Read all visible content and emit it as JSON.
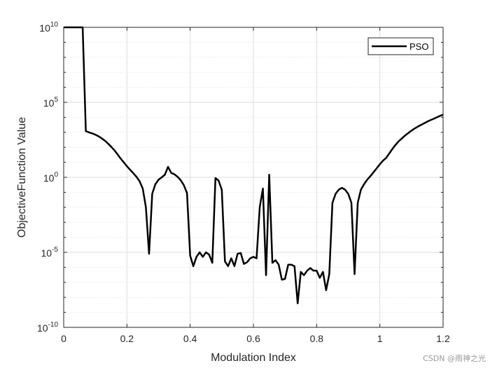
{
  "chart_data": {
    "type": "line",
    "xlabel": "Modulation Index",
    "ylabel": "ObjectiveFunction Value",
    "xlim": [
      0,
      1.2
    ],
    "ylim_exp": [
      -10,
      10
    ],
    "yscale": "log",
    "xticks": [
      "0",
      "0.2",
      "0.4",
      "0.6",
      "0.8",
      "1",
      "1.2"
    ],
    "yticks": [
      {
        "base": "10",
        "exp": "-10"
      },
      {
        "base": "10",
        "exp": "-5"
      },
      {
        "base": "10",
        "exp": "0"
      },
      {
        "base": "10",
        "exp": "5"
      },
      {
        "base": "10",
        "exp": "10"
      }
    ],
    "grid": true,
    "legend_position": "top-right",
    "series": [
      {
        "name": "PSO",
        "color": "#000000",
        "x": [
          0,
          0.01,
          0.02,
          0.03,
          0.04,
          0.05,
          0.06,
          0.07,
          0.08,
          0.09,
          0.1,
          0.11,
          0.12,
          0.13,
          0.14,
          0.15,
          0.16,
          0.17,
          0.18,
          0.19,
          0.2,
          0.21,
          0.22,
          0.23,
          0.24,
          0.25,
          0.26,
          0.27,
          0.28,
          0.29,
          0.3,
          0.31,
          0.32,
          0.33,
          0.34,
          0.35,
          0.36,
          0.37,
          0.38,
          0.39,
          0.4,
          0.41,
          0.42,
          0.43,
          0.44,
          0.45,
          0.46,
          0.47,
          0.48,
          0.49,
          0.5,
          0.51,
          0.52,
          0.53,
          0.54,
          0.55,
          0.56,
          0.57,
          0.58,
          0.59,
          0.6,
          0.61,
          0.62,
          0.63,
          0.64,
          0.65,
          0.66,
          0.67,
          0.68,
          0.69,
          0.7,
          0.71,
          0.72,
          0.73,
          0.74,
          0.75,
          0.76,
          0.77,
          0.78,
          0.79,
          0.8,
          0.81,
          0.82,
          0.83,
          0.84,
          0.85,
          0.86,
          0.87,
          0.88,
          0.89,
          0.9,
          0.91,
          0.92,
          0.93,
          0.94,
          0.95,
          0.96,
          0.97,
          0.98,
          0.99,
          1.0,
          1.01,
          1.02,
          1.03,
          1.04,
          1.05,
          1.06,
          1.07,
          1.08,
          1.09,
          1.1,
          1.11,
          1.12,
          1.13,
          1.14,
          1.15,
          1.16,
          1.17,
          1.18,
          1.19,
          1.2
        ],
        "y": [
          10000000000.0,
          10000000000.0,
          10000000000.0,
          10000000000.0,
          10000000000.0,
          10000000000.0,
          10000000000.0,
          1200.0,
          1000.0,
          850.0,
          700.0,
          550.0,
          400.0,
          280.0,
          180.0,
          110.0,
          65,
          35,
          18,
          10,
          5.5,
          3.2,
          1.9,
          1.1,
          0.55,
          0.18,
          0.01,
          8e-06,
          0.08,
          0.35,
          0.7,
          1.0,
          1.5,
          5.0,
          2.0,
          1.6,
          1.1,
          0.65,
          0.3,
          0.09,
          6e-06,
          1.2e-06,
          5e-06,
          1e-05,
          5e-06,
          1e-05,
          7e-06,
          2e-06,
          0.9,
          0.6,
          0.15,
          2.5e-06,
          1.2e-06,
          4e-06,
          1.2e-06,
          8e-06,
          9e-06,
          1.7e-06,
          2.2e-06,
          4e-06,
          5e-06,
          4e-06,
          0.01,
          0.18,
          3e-07,
          1.5,
          2e-06,
          3e-06,
          1.5e-06,
          1.5e-07,
          1.7e-07,
          1.5e-06,
          1.5e-06,
          1.2e-06,
          4e-09,
          5e-07,
          3e-07,
          6e-07,
          9e-07,
          6e-07,
          6e-07,
          2e-07,
          5e-07,
          3e-08,
          3.5e-07,
          0.02,
          0.08,
          0.15,
          0.2,
          0.15,
          0.08,
          0.02,
          3.5e-07,
          0.02,
          0.15,
          0.35,
          0.7,
          1.2,
          2.2,
          4.0,
          7.5,
          13,
          20,
          40,
          80,
          150,
          260,
          400,
          620,
          900,
          1300,
          1800,
          2400,
          3100,
          4000,
          5200,
          6500,
          8000,
          10000,
          12500,
          15000
        ]
      }
    ]
  },
  "watermark": "CSDN @雨神之光"
}
